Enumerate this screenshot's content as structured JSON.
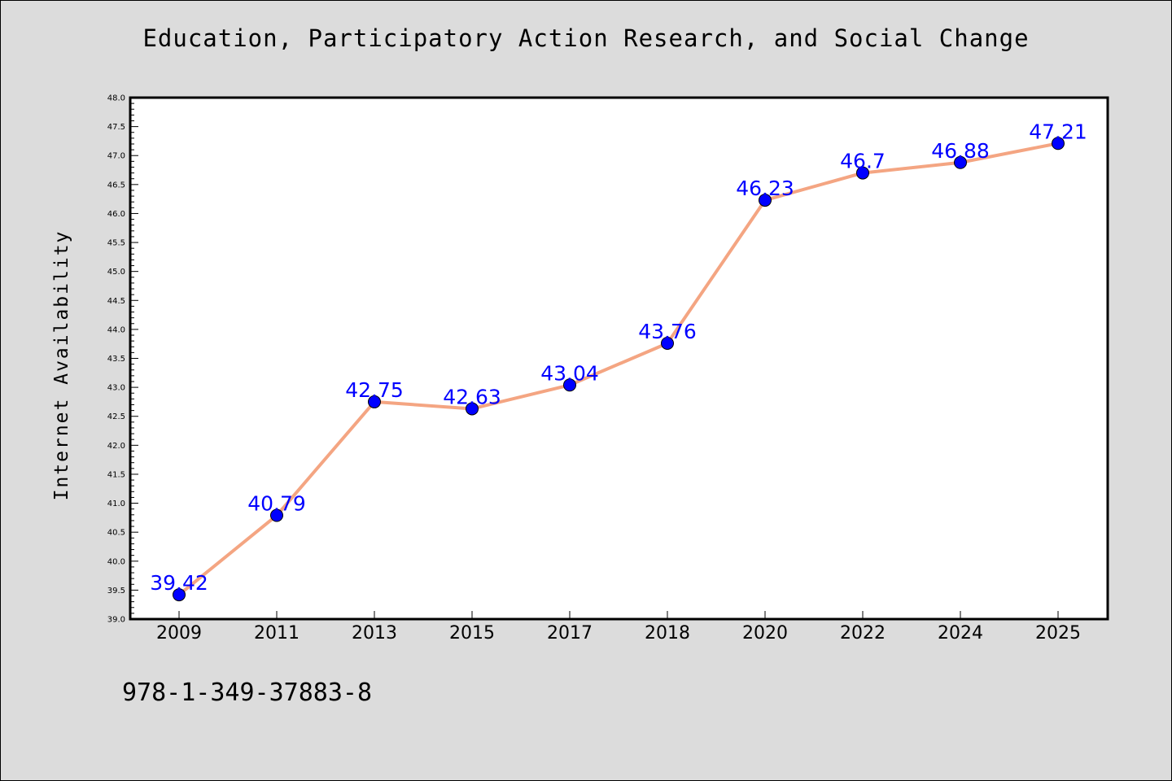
{
  "colors": {
    "background": "#dcdcdc",
    "plot_background": "#ffffff",
    "line": "#f4a582",
    "marker": "#0000ff",
    "data_label": "#0000ff"
  },
  "footer": {
    "isbn": "978-1-349-37883-8"
  },
  "chart_data": {
    "type": "line",
    "title": "Education, Participatory Action Research, and Social Change",
    "xlabel": "",
    "ylabel": "Internet Availability",
    "categories": [
      "2009",
      "2011",
      "2013",
      "2015",
      "2017",
      "2018",
      "2020",
      "2022",
      "2024",
      "2025"
    ],
    "series": [
      {
        "values": [
          39.42,
          40.79,
          42.75,
          42.63,
          43.04,
          43.76,
          46.23,
          46.7,
          46.88,
          47.21
        ]
      }
    ],
    "data_labels": [
      "39.42",
      "40.79",
      "42.75",
      "42.63",
      "43.04",
      "43.76",
      "46.23",
      "46.7",
      "46.88",
      "47.21"
    ],
    "ylim": [
      39.0,
      48.0
    ],
    "yticks": [
      "39.0",
      "39.5",
      "40.0",
      "40.5",
      "41.0",
      "41.5",
      "42.0",
      "42.5",
      "43.0",
      "43.5",
      "44.0",
      "44.5",
      "45.0",
      "45.5",
      "46.0",
      "46.5",
      "47.0",
      "47.5",
      "48.0"
    ],
    "grid": false,
    "legend": "none"
  }
}
